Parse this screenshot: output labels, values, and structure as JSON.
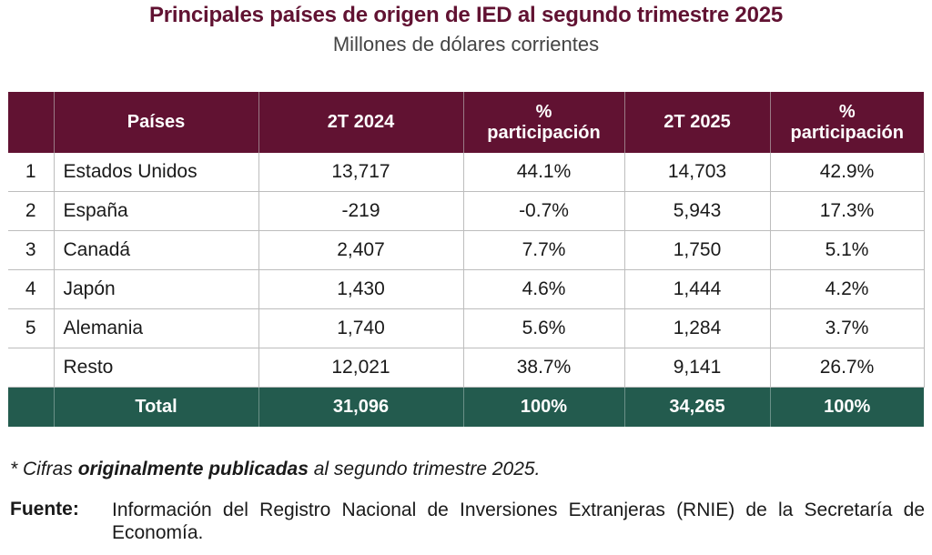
{
  "title": "Principales países de origen de IED al segundo trimestre 2025",
  "subtitle": "Millones de dólares corrientes",
  "colors": {
    "header_bg": "#611232",
    "total_bg": "#235b4e",
    "title_color": "#611232"
  },
  "table": {
    "headers": {
      "rank": "",
      "country": "Países",
      "v2024": "2T 2024",
      "p2024_line1": "%",
      "p2024_line2": "participación",
      "v2025": "2T 2025",
      "p2025_line1": "%",
      "p2025_line2": "participación"
    },
    "rows": [
      {
        "rank": "1",
        "country": "Estados Unidos",
        "v2024": "13,717",
        "p2024": "44.1%",
        "v2025": "14,703",
        "p2025": "42.9%"
      },
      {
        "rank": "2",
        "country": "España",
        "v2024": "-219",
        "p2024": "-0.7%",
        "v2025": "5,943",
        "p2025": "17.3%"
      },
      {
        "rank": "3",
        "country": "Canadá",
        "v2024": "2,407",
        "p2024": "7.7%",
        "v2025": "1,750",
        "p2025": "5.1%"
      },
      {
        "rank": "4",
        "country": "Japón",
        "v2024": "1,430",
        "p2024": "4.6%",
        "v2025": "1,444",
        "p2025": "4.2%"
      },
      {
        "rank": "5",
        "country": "Alemania",
        "v2024": "1,740",
        "p2024": "5.6%",
        "v2025": "1,284",
        "p2025": "3.7%"
      },
      {
        "rank": "",
        "country": "Resto",
        "v2024": "12,021",
        "p2024": "38.7%",
        "v2025": "9,141",
        "p2025": "26.7%"
      }
    ],
    "total": {
      "label": "Total",
      "v2024": "31,096",
      "p2024": "100%",
      "v2025": "34,265",
      "p2025": "100%"
    }
  },
  "note": {
    "prefix": "* Cifras ",
    "emphasis": "originalmente publicadas",
    "suffix": " al segundo trimestre 2025."
  },
  "source": {
    "label": "Fuente:",
    "text": "Información del Registro Nacional de Inversiones Extranjeras (RNIE) de la Secretaría de Economía."
  }
}
